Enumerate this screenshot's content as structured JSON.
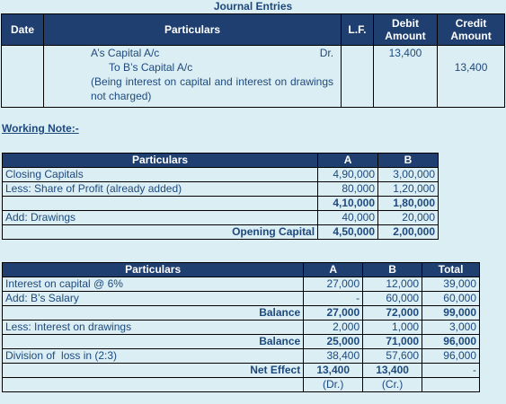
{
  "journal": {
    "title": "Journal Entries",
    "headers": {
      "date": "Date",
      "particulars": "Particulars",
      "lf": "L.F.",
      "debit": "Debit Amount",
      "credit": "Credit Amount"
    },
    "entry": {
      "date": "",
      "line1": "A’s Capital A/c",
      "dr": "Dr.",
      "line2": "To B’s Capital A/c",
      "narration": "(Being interest on capital and interest on drawings not charged)",
      "lf": "",
      "debit": "13,400",
      "credit": "13,400"
    }
  },
  "working_note": {
    "label": "Working Note",
    "suffix": ":-"
  },
  "capital_table": {
    "headers": {
      "particulars": "Particulars",
      "a": "A",
      "b": "B"
    },
    "rows": [
      {
        "label": "Closing Capitals",
        "a": "4,90,000",
        "b": "3,00,000"
      },
      {
        "label": "Less: Share of Profit (already added)",
        "a": "80,000",
        "b": "1,20,000"
      },
      {
        "label": "",
        "a": "4,10,000",
        "b": "1,80,000"
      },
      {
        "label": "Add: Drawings",
        "a": "40,000",
        "b": "20,000"
      },
      {
        "label": "Opening Capital",
        "a": "4,50,000",
        "b": "2,00,000"
      }
    ]
  },
  "effect_table": {
    "headers": {
      "particulars": "Particulars",
      "a": "A",
      "b": "B",
      "total": "Total"
    },
    "rows": [
      {
        "label": "Interest on capital @ 6%",
        "a": "27,000",
        "b": "12,000",
        "total": "39,000"
      },
      {
        "label": "Add: B’s Salary",
        "a": "-",
        "b": "60,000",
        "total": "60,000"
      },
      {
        "label": "Balance",
        "a": "27,000",
        "b": "72,000",
        "total": "99,000"
      },
      {
        "label": "Less: Interest on drawings",
        "a": "2,000",
        "b": "1,000",
        "total": "3,000"
      },
      {
        "label": "Balance",
        "a": "25,000",
        "b": "71,000",
        "total": "96,000"
      },
      {
        "label": "Division of  loss in (2:3)",
        "a": "38,400",
        "b": "57,600",
        "total": "96,000"
      },
      {
        "label": "Net Effect",
        "a": "13,400",
        "b": "13,400",
        "total": "-"
      },
      {
        "label": "",
        "a": "(Dr.)",
        "b": "(Cr.)",
        "total": ""
      }
    ]
  }
}
